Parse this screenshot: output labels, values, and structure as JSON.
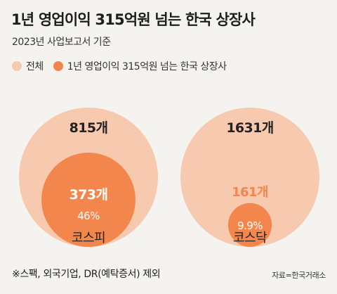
{
  "header": {
    "title": "1년 영업이익 315억원 넘는 한국 상장사",
    "subtitle": "2023년 사업보고서 기준"
  },
  "legend": [
    {
      "label": "전체",
      "color": "#f7c9ae"
    },
    {
      "label": "1년 영업이익 315억원 넘는 한국 상장사",
      "color": "#f2864c"
    }
  ],
  "colors": {
    "outer_fill": "#f7c9ae",
    "inner_fill": "#f2864c",
    "dark_text": "#222222",
    "light_text": "#ffffff",
    "accent_text": "#f2864c"
  },
  "chart_data": [
    {
      "type": "bubble",
      "market": "코스피",
      "total": 815,
      "total_label": "815개",
      "count": 373,
      "count_label": "373개",
      "share_label": "46%"
    },
    {
      "type": "bubble",
      "market": "코스닥",
      "total": 1631,
      "total_label": "1631개",
      "count": 161,
      "count_label": "161개",
      "share_label": "9.9%"
    }
  ],
  "footnote": "※스팩, 외국기업, DR(예탁증서) 제외",
  "source": "자료=한국거래소"
}
